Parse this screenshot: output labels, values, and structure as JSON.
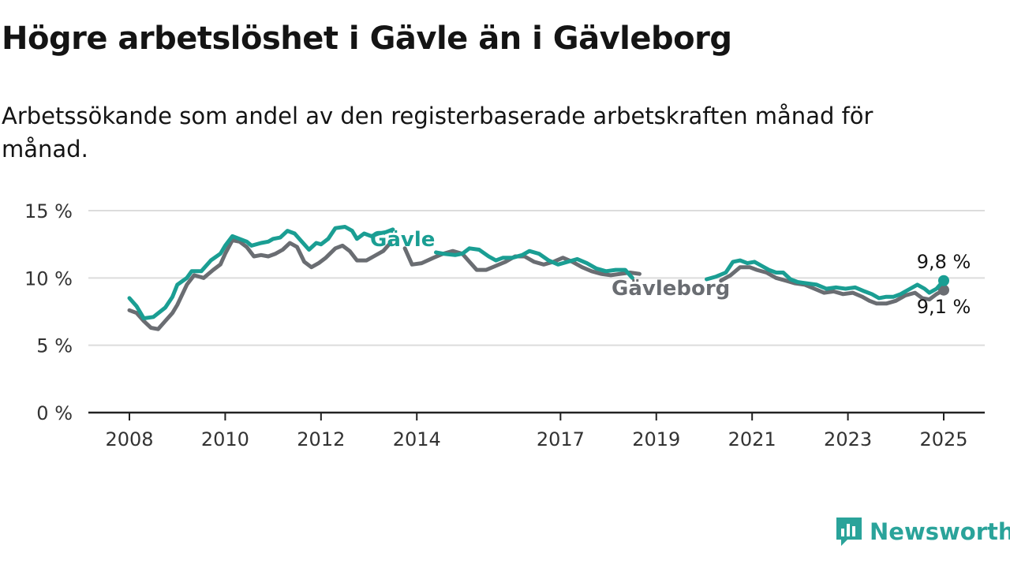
{
  "title": "Högre arbetslöshet i Gävle än i Gävleborg",
  "subtitle": "Arbetssökande som andel av den registerbaserade arbetskraften månad för månad.",
  "brand": {
    "name": "Newsworthy",
    "color": "#2aa39a",
    "icon": "newsworthy-chart-icon"
  },
  "chart_data": {
    "type": "line",
    "title": "Högre arbetslöshet i Gävle än i Gävleborg",
    "xlabel": "",
    "ylabel": "",
    "xlim": [
      2008,
      2025
    ],
    "ylim": [
      0,
      15
    ],
    "y_ticks": [
      0,
      5,
      10,
      15
    ],
    "y_tick_labels": [
      "0 %",
      "5 %",
      "10 %",
      "15 %"
    ],
    "x_ticks": [
      2008,
      2010,
      2012,
      2014,
      2017,
      2019,
      2021,
      2023,
      2025
    ],
    "x_tick_labels": [
      "2008",
      "2010",
      "2012",
      "2014",
      "2017",
      "2019",
      "2021",
      "2023",
      "2025"
    ],
    "grid": true,
    "series": [
      {
        "name": "Gävle",
        "color": "#1a9e93",
        "end_label": "9,8 %",
        "points": [
          [
            2008.0,
            8.5
          ],
          [
            2008.15,
            7.9
          ],
          [
            2008.3,
            7.0
          ],
          [
            2008.5,
            7.1
          ],
          [
            2008.75,
            7.8
          ],
          [
            2008.9,
            8.6
          ],
          [
            2009.0,
            9.5
          ],
          [
            2009.2,
            10.0
          ],
          [
            2009.3,
            10.5
          ],
          [
            2009.5,
            10.5
          ],
          [
            2009.7,
            11.3
          ],
          [
            2009.9,
            11.8
          ],
          [
            2010.0,
            12.4
          ],
          [
            2010.15,
            13.1
          ],
          [
            2010.3,
            12.9
          ],
          [
            2010.45,
            12.7
          ],
          [
            2010.55,
            12.4
          ],
          [
            2010.75,
            12.6
          ],
          [
            2010.9,
            12.7
          ],
          [
            2011.0,
            12.9
          ],
          [
            2011.15,
            13.0
          ],
          [
            2011.3,
            13.5
          ],
          [
            2011.45,
            13.3
          ],
          [
            2011.6,
            12.7
          ],
          [
            2011.75,
            12.1
          ],
          [
            2011.9,
            12.6
          ],
          [
            2012.0,
            12.5
          ],
          [
            2012.15,
            12.9
          ],
          [
            2012.3,
            13.7
          ],
          [
            2012.5,
            13.8
          ],
          [
            2012.65,
            13.5
          ],
          [
            2012.75,
            12.9
          ],
          [
            2012.9,
            13.3
          ],
          [
            2013.05,
            13.1
          ],
          [
            2013.2,
            13.3
          ],
          [
            2013.35,
            13.4
          ],
          [
            2013.5,
            13.6
          ]
        ],
        "segments": [
          [
            [
              2014.4,
              11.9
            ],
            [
              2014.55,
              11.8
            ],
            [
              2014.8,
              11.7
            ],
            [
              2014.95,
              11.8
            ],
            [
              2015.1,
              12.2
            ],
            [
              2015.3,
              12.1
            ],
            [
              2015.5,
              11.6
            ],
            [
              2015.65,
              11.3
            ],
            [
              2015.8,
              11.5
            ],
            [
              2016.0,
              11.5
            ],
            [
              2016.2,
              11.7
            ],
            [
              2016.35,
              12.0
            ],
            [
              2016.55,
              11.8
            ],
            [
              2016.75,
              11.3
            ],
            [
              2016.95,
              11.0
            ],
            [
              2017.15,
              11.2
            ],
            [
              2017.35,
              11.4
            ],
            [
              2017.55,
              11.1
            ],
            [
              2017.75,
              10.7
            ],
            [
              2017.95,
              10.5
            ],
            [
              2018.15,
              10.6
            ],
            [
              2018.35,
              10.6
            ],
            [
              2018.5,
              10.0
            ]
          ],
          [
            [
              2020.05,
              9.9
            ],
            [
              2020.25,
              10.1
            ],
            [
              2020.45,
              10.4
            ],
            [
              2020.6,
              11.2
            ],
            [
              2020.75,
              11.3
            ],
            [
              2020.9,
              11.1
            ],
            [
              2021.05,
              11.2
            ],
            [
              2021.2,
              10.9
            ],
            [
              2021.35,
              10.6
            ],
            [
              2021.5,
              10.4
            ],
            [
              2021.65,
              10.4
            ],
            [
              2021.8,
              9.9
            ],
            [
              2021.95,
              9.7
            ],
            [
              2022.15,
              9.6
            ],
            [
              2022.35,
              9.5
            ],
            [
              2022.55,
              9.2
            ],
            [
              2022.75,
              9.3
            ],
            [
              2022.95,
              9.2
            ],
            [
              2023.15,
              9.3
            ],
            [
              2023.35,
              9.0
            ],
            [
              2023.5,
              8.8
            ],
            [
              2023.65,
              8.5
            ],
            [
              2023.8,
              8.6
            ],
            [
              2023.95,
              8.6
            ],
            [
              2024.1,
              8.8
            ],
            [
              2024.3,
              9.2
            ],
            [
              2024.45,
              9.5
            ],
            [
              2024.6,
              9.2
            ],
            [
              2024.7,
              8.9
            ],
            [
              2024.85,
              9.2
            ],
            [
              2025.0,
              9.8
            ]
          ]
        ]
      },
      {
        "name": "Gävleborg",
        "color": "#6a6d72",
        "end_label": "9,1 %",
        "segments": [
          [
            [
              2008.0,
              7.6
            ],
            [
              2008.15,
              7.4
            ],
            [
              2008.3,
              6.8
            ],
            [
              2008.45,
              6.3
            ],
            [
              2008.6,
              6.2
            ],
            [
              2008.75,
              6.8
            ],
            [
              2008.9,
              7.4
            ],
            [
              2009.0,
              8.0
            ],
            [
              2009.2,
              9.5
            ],
            [
              2009.35,
              10.2
            ],
            [
              2009.55,
              10.0
            ],
            [
              2009.75,
              10.6
            ],
            [
              2009.9,
              11.0
            ],
            [
              2010.0,
              11.8
            ],
            [
              2010.15,
              12.8
            ],
            [
              2010.3,
              12.7
            ],
            [
              2010.45,
              12.3
            ],
            [
              2010.6,
              11.6
            ],
            [
              2010.75,
              11.7
            ],
            [
              2010.9,
              11.6
            ],
            [
              2011.05,
              11.8
            ],
            [
              2011.2,
              12.1
            ],
            [
              2011.35,
              12.6
            ],
            [
              2011.5,
              12.3
            ],
            [
              2011.65,
              11.2
            ],
            [
              2011.8,
              10.8
            ],
            [
              2011.95,
              11.1
            ],
            [
              2012.1,
              11.5
            ],
            [
              2012.3,
              12.2
            ],
            [
              2012.45,
              12.4
            ],
            [
              2012.6,
              12.0
            ],
            [
              2012.75,
              11.3
            ],
            [
              2012.95,
              11.3
            ],
            [
              2013.1,
              11.6
            ],
            [
              2013.3,
              12.0
            ],
            [
              2013.45,
              12.6
            ]
          ],
          [
            [
              2013.75,
              12.2
            ],
            [
              2013.9,
              11.0
            ],
            [
              2014.1,
              11.1
            ],
            [
              2014.35,
              11.5
            ],
            [
              2014.55,
              11.8
            ],
            [
              2014.75,
              12.0
            ],
            [
              2014.95,
              11.8
            ],
            [
              2015.1,
              11.2
            ],
            [
              2015.25,
              10.6
            ],
            [
              2015.45,
              10.6
            ],
            [
              2015.65,
              10.9
            ],
            [
              2015.85,
              11.2
            ],
            [
              2016.05,
              11.6
            ],
            [
              2016.25,
              11.6
            ],
            [
              2016.45,
              11.2
            ],
            [
              2016.65,
              11.0
            ],
            [
              2016.85,
              11.2
            ],
            [
              2017.05,
              11.5
            ],
            [
              2017.25,
              11.2
            ],
            [
              2017.45,
              10.8
            ],
            [
              2017.65,
              10.5
            ],
            [
              2017.85,
              10.3
            ],
            [
              2018.05,
              10.2
            ],
            [
              2018.25,
              10.3
            ],
            [
              2018.45,
              10.4
            ],
            [
              2018.65,
              10.3
            ]
          ],
          [
            [
              2020.35,
              9.8
            ],
            [
              2020.55,
              10.2
            ],
            [
              2020.75,
              10.8
            ],
            [
              2020.95,
              10.8
            ],
            [
              2021.1,
              10.6
            ],
            [
              2021.3,
              10.4
            ],
            [
              2021.5,
              10.0
            ],
            [
              2021.7,
              9.8
            ],
            [
              2021.9,
              9.6
            ],
            [
              2022.1,
              9.5
            ],
            [
              2022.3,
              9.2
            ],
            [
              2022.5,
              8.9
            ],
            [
              2022.7,
              9.0
            ],
            [
              2022.9,
              8.8
            ],
            [
              2023.1,
              8.9
            ],
            [
              2023.3,
              8.6
            ],
            [
              2023.45,
              8.3
            ],
            [
              2023.6,
              8.1
            ],
            [
              2023.8,
              8.1
            ],
            [
              2024.0,
              8.3
            ],
            [
              2024.2,
              8.7
            ],
            [
              2024.4,
              8.9
            ],
            [
              2024.55,
              8.5
            ],
            [
              2024.7,
              8.4
            ],
            [
              2024.85,
              8.8
            ],
            [
              2025.0,
              9.1
            ]
          ]
        ]
      }
    ],
    "annotations": [
      {
        "text": "Gävle",
        "series": "Gävle"
      },
      {
        "text": "Gävleborg",
        "series": "Gävleborg"
      }
    ]
  }
}
